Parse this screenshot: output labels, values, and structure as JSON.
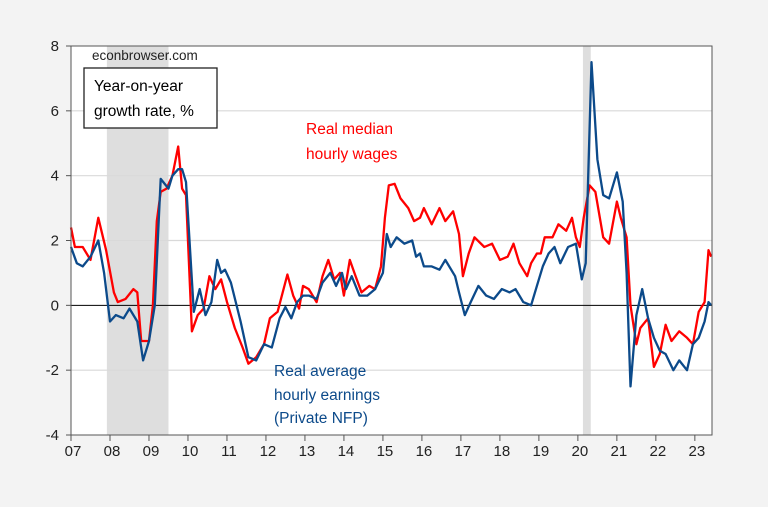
{
  "chart_data": {
    "type": "line",
    "watermark": "econbrowser.com",
    "legend_box": [
      "Year-on-year",
      "growth rate, %"
    ],
    "xlim": [
      2007,
      2023.44
    ],
    "ylim": [
      -4,
      8
    ],
    "yticks": [
      -4,
      -2,
      0,
      2,
      4,
      6,
      8
    ],
    "xticks": [
      {
        "year": 2007,
        "label": "07"
      },
      {
        "year": 2008,
        "label": "08"
      },
      {
        "year": 2009,
        "label": "09"
      },
      {
        "year": 2010,
        "label": "10"
      },
      {
        "year": 2011,
        "label": "11"
      },
      {
        "year": 2012,
        "label": "12"
      },
      {
        "year": 2013,
        "label": "13"
      },
      {
        "year": 2014,
        "label": "14"
      },
      {
        "year": 2015,
        "label": "15"
      },
      {
        "year": 2016,
        "label": "16"
      },
      {
        "year": 2017,
        "label": "17"
      },
      {
        "year": 2018,
        "label": "18"
      },
      {
        "year": 2019,
        "label": "19"
      },
      {
        "year": 2020,
        "label": "20"
      },
      {
        "year": 2021,
        "label": "21"
      },
      {
        "year": 2022,
        "label": "22"
      },
      {
        "year": 2023,
        "label": "23"
      }
    ],
    "grid": "horizontal",
    "recession_shading": [
      [
        2007.92,
        2009.5
      ],
      [
        2020.13,
        2020.33
      ]
    ],
    "colors": {
      "red": "#ff0000",
      "blue": "#0c4a8a",
      "shade": "#dedede",
      "grid": "#d9d9d9"
    },
    "series": [
      {
        "name": "Real median hourly wages",
        "label_lines": [
          "Real median",
          "hourly wages"
        ],
        "color": "#ff0000",
        "x": [
          2007.0,
          2007.1,
          2007.3,
          2007.5,
          2007.7,
          2007.9,
          2008.1,
          2008.2,
          2008.4,
          2008.6,
          2008.7,
          2008.8,
          2009.0,
          2009.1,
          2009.2,
          2009.3,
          2009.45,
          2009.6,
          2009.75,
          2009.85,
          2009.95,
          2010.1,
          2010.25,
          2010.4,
          2010.55,
          2010.7,
          2010.85,
          2011.0,
          2011.2,
          2011.4,
          2011.55,
          2011.75,
          2011.95,
          2012.1,
          2012.3,
          2012.55,
          2012.7,
          2012.85,
          2012.95,
          2013.1,
          2013.3,
          2013.45,
          2013.6,
          2013.75,
          2013.9,
          2014.0,
          2014.15,
          2014.3,
          2014.45,
          2014.65,
          2014.8,
          2014.95,
          2015.05,
          2015.15,
          2015.3,
          2015.45,
          2015.65,
          2015.8,
          2015.95,
          2016.05,
          2016.25,
          2016.45,
          2016.6,
          2016.8,
          2016.95,
          2017.05,
          2017.2,
          2017.35,
          2017.6,
          2017.8,
          2018.0,
          2018.2,
          2018.35,
          2018.5,
          2018.7,
          2018.8,
          2018.95,
          2019.05,
          2019.15,
          2019.35,
          2019.5,
          2019.7,
          2019.85,
          2019.95,
          2020.05,
          2020.15,
          2020.3,
          2020.45,
          2020.65,
          2020.8,
          2021.0,
          2021.1,
          2021.25,
          2021.35,
          2021.5,
          2021.6,
          2021.8,
          2021.95,
          2022.1,
          2022.25,
          2022.4,
          2022.6,
          2022.8,
          2022.95,
          2023.1,
          2023.25,
          2023.35,
          2023.42
        ],
        "y": [
          2.4,
          1.8,
          1.8,
          1.4,
          2.7,
          1.7,
          0.4,
          0.1,
          0.2,
          0.5,
          0.4,
          -1.1,
          -1.1,
          0.0,
          2.6,
          3.5,
          3.6,
          4.0,
          4.9,
          3.6,
          3.4,
          -0.8,
          -0.3,
          -0.1,
          0.9,
          0.5,
          0.8,
          0.1,
          -0.7,
          -1.3,
          -1.8,
          -1.6,
          -1.2,
          -0.4,
          -0.2,
          0.95,
          0.3,
          -0.1,
          0.6,
          0.5,
          0.1,
          0.9,
          1.4,
          0.8,
          1.0,
          0.3,
          1.4,
          0.9,
          0.4,
          0.6,
          0.5,
          1.2,
          2.7,
          3.7,
          3.75,
          3.3,
          3.0,
          2.6,
          2.7,
          3.0,
          2.5,
          3.0,
          2.6,
          2.9,
          2.2,
          0.9,
          1.6,
          2.1,
          1.8,
          1.9,
          1.4,
          1.5,
          1.9,
          1.3,
          0.9,
          1.3,
          1.6,
          1.6,
          2.1,
          2.1,
          2.5,
          2.3,
          2.7,
          2.1,
          1.8,
          2.7,
          3.7,
          3.5,
          2.1,
          1.9,
          3.2,
          2.7,
          2.1,
          0.0,
          -1.2,
          -0.7,
          -0.4,
          -1.9,
          -1.5,
          -0.6,
          -1.1,
          -0.8,
          -1.0,
          -1.2,
          -0.2,
          0.1,
          1.7,
          1.5
        ]
      },
      {
        "name": "Real average hourly earnings (Private NFP)",
        "label_lines": [
          "Real average",
          "hourly earnings",
          "(Private NFP)"
        ],
        "color": "#0c4a8a",
        "x": [
          2007.0,
          2007.15,
          2007.3,
          2007.5,
          2007.7,
          2007.85,
          2008.0,
          2008.15,
          2008.35,
          2008.5,
          2008.7,
          2008.85,
          2009.0,
          2009.15,
          2009.25,
          2009.3,
          2009.5,
          2009.6,
          2009.75,
          2009.85,
          2009.95,
          2010.15,
          2010.3,
          2010.45,
          2010.6,
          2010.75,
          2010.85,
          2010.95,
          2011.1,
          2011.35,
          2011.55,
          2011.75,
          2011.95,
          2012.15,
          2012.35,
          2012.5,
          2012.65,
          2012.8,
          2012.95,
          2013.1,
          2013.3,
          2013.45,
          2013.65,
          2013.8,
          2013.95,
          2014.05,
          2014.2,
          2014.4,
          2014.6,
          2014.8,
          2015.0,
          2015.1,
          2015.2,
          2015.35,
          2015.55,
          2015.75,
          2015.85,
          2015.95,
          2016.05,
          2016.25,
          2016.45,
          2016.6,
          2016.85,
          2016.95,
          2017.1,
          2017.25,
          2017.45,
          2017.65,
          2017.85,
          2018.05,
          2018.25,
          2018.4,
          2018.6,
          2018.8,
          2018.95,
          2019.1,
          2019.25,
          2019.4,
          2019.55,
          2019.75,
          2019.95,
          2020.1,
          2020.2,
          2020.35,
          2020.5,
          2020.65,
          2020.8,
          2021.0,
          2021.15,
          2021.25,
          2021.35,
          2021.5,
          2021.65,
          2021.8,
          2021.95,
          2022.1,
          2022.25,
          2022.45,
          2022.6,
          2022.8,
          2022.95,
          2023.1,
          2023.25,
          2023.35,
          2023.42
        ],
        "y": [
          1.8,
          1.3,
          1.2,
          1.5,
          2.0,
          1.0,
          -0.5,
          -0.3,
          -0.4,
          -0.1,
          -0.5,
          -1.7,
          -1.1,
          0.0,
          2.6,
          3.9,
          3.6,
          4.0,
          4.2,
          4.2,
          3.8,
          -0.2,
          0.5,
          -0.3,
          0.1,
          1.4,
          1.0,
          1.1,
          0.7,
          -0.5,
          -1.6,
          -1.7,
          -1.2,
          -1.3,
          -0.4,
          -0.05,
          -0.4,
          0.1,
          0.3,
          0.3,
          0.2,
          0.7,
          1.0,
          0.6,
          1.0,
          0.5,
          0.9,
          0.3,
          0.3,
          0.5,
          1.0,
          2.2,
          1.8,
          2.1,
          1.9,
          2.0,
          1.5,
          1.6,
          1.2,
          1.2,
          1.1,
          1.4,
          0.9,
          0.4,
          -0.3,
          0.1,
          0.6,
          0.3,
          0.2,
          0.5,
          0.4,
          0.5,
          0.1,
          0.0,
          0.6,
          1.2,
          1.6,
          1.8,
          1.3,
          1.8,
          1.9,
          0.8,
          1.3,
          7.5,
          4.5,
          3.4,
          3.3,
          4.1,
          3.2,
          1.0,
          -2.5,
          -0.3,
          0.5,
          -0.4,
          -1.0,
          -1.4,
          -1.5,
          -2.0,
          -1.7,
          -2.0,
          -1.2,
          -1.0,
          -0.5,
          0.1,
          0.0
        ]
      }
    ]
  }
}
